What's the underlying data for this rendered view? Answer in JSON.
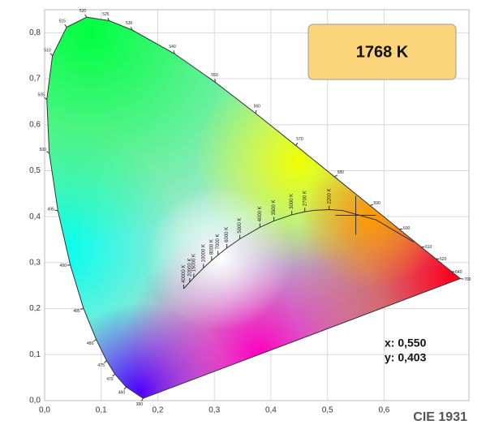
{
  "chart_data": {
    "type": "chromaticity",
    "title": "1768 K",
    "footer": "CIE 1931",
    "xlim": [
      0,
      0.75
    ],
    "ylim": [
      0,
      0.85
    ],
    "xticks": [
      {
        "value": 0,
        "label": "0,0"
      },
      {
        "value": 0.1,
        "label": "0,1"
      },
      {
        "value": 0.2,
        "label": "0,2"
      },
      {
        "value": 0.3,
        "label": "0,3"
      },
      {
        "value": 0.4,
        "label": "0,4"
      },
      {
        "value": 0.5,
        "label": "0,5"
      },
      {
        "value": 0.6,
        "label": "0,6"
      }
    ],
    "yticks": [
      {
        "value": 0,
        "label": "0,0"
      },
      {
        "value": 0.1,
        "label": "0,1"
      },
      {
        "value": 0.2,
        "label": "0,2"
      },
      {
        "value": 0.3,
        "label": "0,3"
      },
      {
        "value": 0.4,
        "label": "0,4"
      },
      {
        "value": 0.5,
        "label": "0,5"
      },
      {
        "value": 0.6,
        "label": "0,6"
      },
      {
        "value": 0.7,
        "label": "0,7"
      },
      {
        "value": 0.8,
        "label": "0,8"
      }
    ],
    "grid": true,
    "spectral_locus": {
      "wavelengths": [
        380,
        460,
        470,
        475,
        480,
        485,
        490,
        495,
        500,
        505,
        510,
        515,
        520,
        525,
        530,
        540,
        550,
        560,
        570,
        580,
        590,
        600,
        610,
        620,
        640,
        700
      ],
      "x": [
        0.1741,
        0.144,
        0.1241,
        0.1096,
        0.0913,
        0.0687,
        0.0454,
        0.0235,
        0.0082,
        0.0039,
        0.0139,
        0.0389,
        0.0743,
        0.1142,
        0.1547,
        0.2296,
        0.3016,
        0.3731,
        0.4441,
        0.5125,
        0.5752,
        0.627,
        0.6658,
        0.6915,
        0.719,
        0.7347
      ],
      "y": [
        0.005,
        0.0297,
        0.0578,
        0.0868,
        0.1327,
        0.2007,
        0.295,
        0.4127,
        0.5384,
        0.6548,
        0.7502,
        0.812,
        0.8338,
        0.8262,
        0.8059,
        0.7543,
        0.6923,
        0.6245,
        0.5547,
        0.4866,
        0.4242,
        0.3725,
        0.334,
        0.3083,
        0.2809,
        0.2653
      ]
    },
    "planckian_locus": {
      "cct": [
        1000,
        1500,
        2000,
        2200,
        2500,
        2700,
        3000,
        3500,
        4000,
        5000,
        6000,
        7000,
        8000,
        10000,
        15000,
        20000,
        40000
      ],
      "cct_labels": [
        null,
        null,
        null,
        "2200 K",
        null,
        "2700 K",
        "3000 K",
        "3500 K",
        "4000 K",
        "5000 K",
        "6000 K",
        "7000 K",
        "8000 K",
        "10000 K",
        "15000 K",
        "20000 K",
        "40000 K"
      ],
      "x": [
        0.6528,
        0.5857,
        0.5267,
        0.5029,
        0.477,
        0.4599,
        0.4369,
        0.4053,
        0.3805,
        0.3451,
        0.3221,
        0.3064,
        0.2952,
        0.2807,
        0.2637,
        0.2565,
        0.2458
      ],
      "y": [
        0.3444,
        0.3931,
        0.4133,
        0.4152,
        0.4137,
        0.4106,
        0.4041,
        0.3907,
        0.3768,
        0.3516,
        0.3318,
        0.3166,
        0.3048,
        0.2884,
        0.2674,
        0.2577,
        0.2434
      ]
    },
    "point": {
      "x": 0.55,
      "y": 0.403,
      "x_label": "x: 0,550",
      "y_label": "y: 0,403"
    }
  }
}
